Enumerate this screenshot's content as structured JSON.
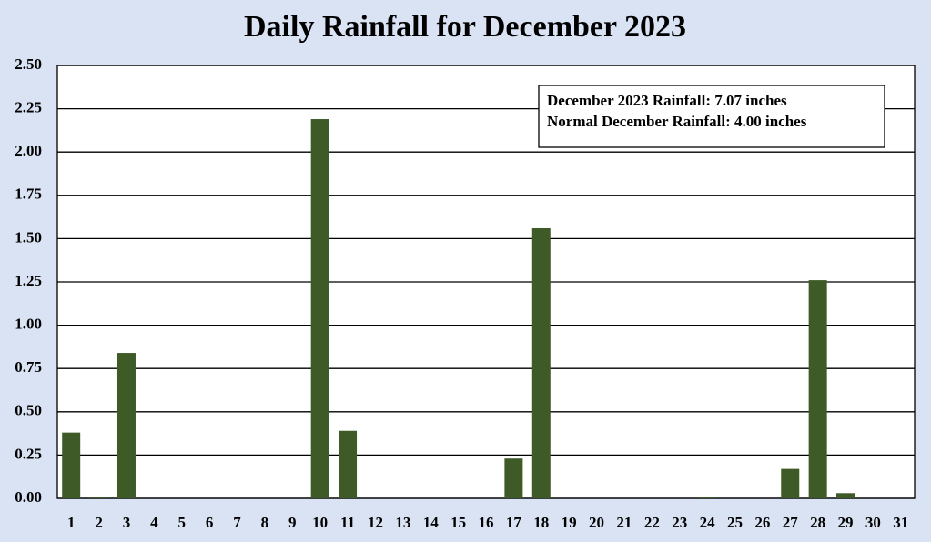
{
  "chart_data": {
    "type": "bar",
    "title": "Daily Rainfall for December 2023",
    "categories": [
      "1",
      "2",
      "3",
      "4",
      "5",
      "6",
      "7",
      "8",
      "9",
      "10",
      "11",
      "12",
      "13",
      "14",
      "15",
      "16",
      "17",
      "18",
      "19",
      "20",
      "21",
      "22",
      "23",
      "24",
      "25",
      "26",
      "27",
      "28",
      "29",
      "30",
      "31"
    ],
    "values": [
      0.38,
      0.01,
      0.84,
      0,
      0,
      0,
      0,
      0,
      0,
      2.19,
      0.39,
      0,
      0,
      0,
      0,
      0,
      0.23,
      1.56,
      0,
      0,
      0,
      0,
      0,
      0.01,
      0,
      0,
      0.17,
      1.26,
      0.03,
      0,
      0
    ],
    "color": "#3d5a27",
    "ylim": [
      0,
      2.5
    ],
    "yticks": [
      {
        "value": 0,
        "label": "0.00"
      },
      {
        "value": 0.25,
        "label": "0.25"
      },
      {
        "value": 0.5,
        "label": "0.50"
      },
      {
        "value": 0.75,
        "label": "0.75"
      },
      {
        "value": 1,
        "label": "1.00"
      },
      {
        "value": 1.25,
        "label": "1.25"
      },
      {
        "value": 1.5,
        "label": "1.50"
      },
      {
        "value": 1.75,
        "label": "1.75"
      },
      {
        "value": 2,
        "label": "2.00"
      },
      {
        "value": 2.25,
        "label": "2.25"
      },
      {
        "value": 2.5,
        "label": "2.50"
      }
    ],
    "grid": true,
    "annotations": [
      "December 2023 Rainfall: 7.07 inches",
      "Normal December Rainfall: 4.00 inches"
    ]
  }
}
